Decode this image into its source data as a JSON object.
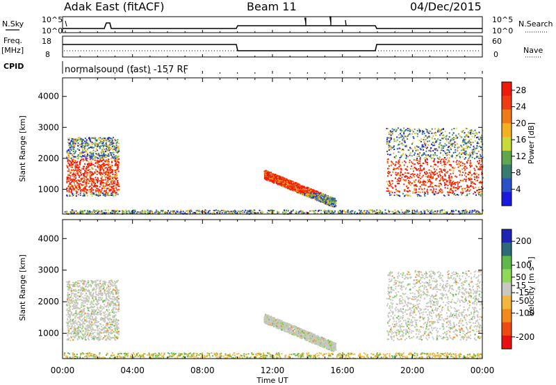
{
  "header": {
    "radar": "Adak East (fitACF)",
    "beam": "Beam 11",
    "date": "04/Dec/2015"
  },
  "panels": {
    "nsky_label": "N.Sky",
    "nsearch_label": "N.Search",
    "freq_label_1": "Freq.",
    "freq_label_2": "[MHz]",
    "nave_label": "Nave",
    "cpid_label": "CPID",
    "cpid_text": "normalsound (fast) -157 RF",
    "noise_ticks": [
      "10^5",
      "10^0"
    ],
    "freq_ticks": [
      "18",
      "8"
    ],
    "nave_ticks": [
      "60",
      "0"
    ]
  },
  "colors": {
    "power": [
      "#1a1adc",
      "#2c50c8",
      "#3a7d6e",
      "#5fa850",
      "#c8d93c",
      "#f4b023",
      "#f07a18",
      "#ee3c14",
      "#ee1a0a"
    ],
    "velocity": [
      "#1e24b4",
      "#2f6a78",
      "#5fb84a",
      "#8fd85a",
      "#c8c8c0",
      "#f2b640",
      "#f08a1a",
      "#ee4a14",
      "#e81010"
    ]
  },
  "chart_data": [
    {
      "type": "heatmap",
      "title": "Power",
      "ylabel": "Slant Range [km]",
      "xlabel": "Time UT",
      "x_ticks": [
        "00:00",
        "04:00",
        "08:00",
        "12:00",
        "16:00",
        "20:00",
        "00:00"
      ],
      "xlim_hours": [
        0,
        24
      ],
      "y_ticks": [
        1000,
        2000,
        3000,
        4000
      ],
      "ylim": [
        200,
        4600
      ],
      "colorbar": {
        "label": "Power [dB]",
        "ticks": [
          4,
          8,
          12,
          16,
          20,
          24,
          28
        ],
        "range": [
          0,
          30
        ]
      },
      "scatter_regions": [
        {
          "t": [
            0.2,
            3.2
          ],
          "r": [
            800,
            2700
          ],
          "peak_db": 26
        },
        {
          "t": [
            11.5,
            15.6
          ],
          "r": [
            500,
            1500
          ],
          "peak_db": 24
        },
        {
          "t": [
            18.5,
            24.0
          ],
          "r": [
            800,
            3000
          ],
          "peak_db": 28
        },
        {
          "t": [
            0.0,
            24.0
          ],
          "r": [
            200,
            350
          ],
          "peak_db": 14
        }
      ]
    },
    {
      "type": "heatmap",
      "title": "Velocity",
      "ylabel": "Slant Range [km]",
      "xlabel": "Time UT",
      "x_ticks": [
        "00:00",
        "04:00",
        "08:00",
        "12:00",
        "16:00",
        "20:00",
        "00:00"
      ],
      "xlim_hours": [
        0,
        24
      ],
      "y_ticks": [
        1000,
        2000,
        3000,
        4000
      ],
      "ylim": [
        200,
        4600
      ],
      "colorbar": {
        "label": "Velocity [m s⁻¹]",
        "ticks": [
          200,
          100,
          50,
          15,
          -15,
          -50,
          -100,
          -200
        ],
        "range": [
          -250,
          250
        ]
      },
      "scatter_regions": [
        {
          "t": [
            0.2,
            3.2
          ],
          "r": [
            800,
            2700
          ],
          "mean_v": 0
        },
        {
          "t": [
            11.5,
            15.6
          ],
          "r": [
            500,
            1500
          ],
          "mean_v": 0
        },
        {
          "t": [
            18.5,
            24.0
          ],
          "r": [
            800,
            3000
          ],
          "mean_v": 0
        },
        {
          "t": [
            0.0,
            24.0
          ],
          "r": [
            200,
            400
          ],
          "mean_v": -40
        }
      ]
    }
  ],
  "xlabel": "Time UT"
}
